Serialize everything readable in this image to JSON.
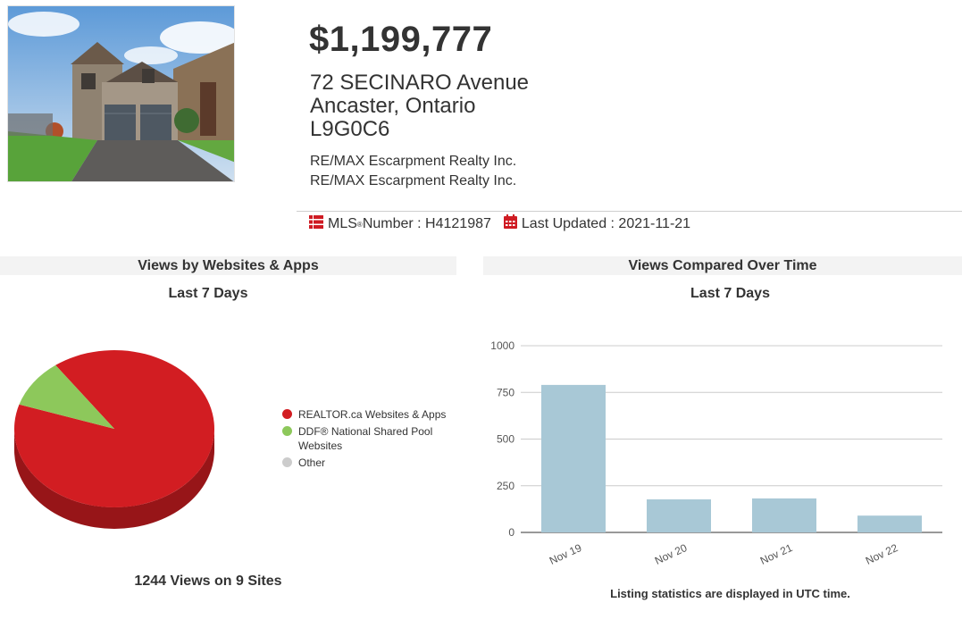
{
  "listing": {
    "price": "$1,199,777",
    "address_line1": "72 SECINARO Avenue",
    "address_line2": "Ancaster, Ontario",
    "postal_code": "L9G0C6",
    "brokerage_1": "RE/MAX Escarpment Realty Inc.",
    "brokerage_2": "RE/MAX Escarpment Realty Inc.",
    "mls_label": "MLS",
    "mls_reg": "®",
    "mls_suffix": " Number : H4121987",
    "updated_text": "Last Updated : 2021-11-21",
    "photo_icon": "house-photo",
    "mls_icon": "list-icon",
    "calendar_icon": "calendar-icon"
  },
  "websites_panel": {
    "title": "Views by Websites & Apps",
    "subtitle": "Last 7 Days",
    "summary": "1244 Views on 9 Sites"
  },
  "time_panel": {
    "title": "Views Compared Over Time",
    "subtitle": "Last 7 Days",
    "footnote": "Listing statistics are displayed in UTC time."
  },
  "colors": {
    "brand_red": "#cf1b23",
    "pie_red": "#d21d22",
    "pie_green": "#8dc85b",
    "pie_grey": "#cccccc",
    "bar_blue": "#a8c8d6"
  },
  "chart_data": [
    {
      "type": "pie",
      "title": "Views by Websites & Apps",
      "subtitle": "Last 7 Days",
      "slices": [
        {
          "label": "REALTOR.ca Websites & Apps",
          "value": 0.9,
          "color": "#d21d22"
        },
        {
          "label": "DDF® National Shared Pool Websites",
          "value": 0.1,
          "color": "#8dc85b"
        },
        {
          "label": "Other",
          "value": 0,
          "color": "#cccccc"
        }
      ],
      "legend_position": "right"
    },
    {
      "type": "bar",
      "title": "Views Compared Over Time",
      "subtitle": "Last 7 Days",
      "categories": [
        "Nov 19",
        "Nov 20",
        "Nov 21",
        "Nov 22"
      ],
      "values": [
        790,
        177,
        182,
        90
      ],
      "ylim": [
        0,
        1000
      ],
      "yticks": [
        0,
        250,
        500,
        750,
        1000
      ],
      "grid": true,
      "color": "#a8c8d6"
    }
  ]
}
